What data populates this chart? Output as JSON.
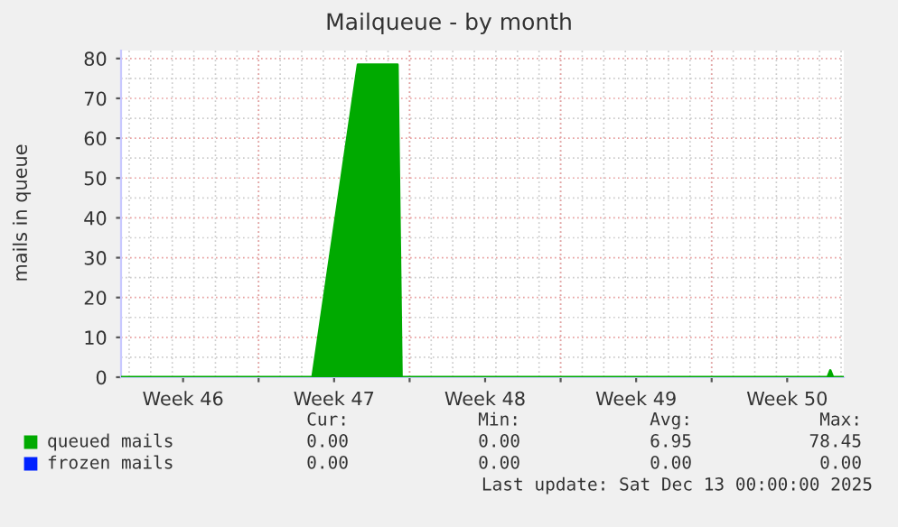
{
  "chart_data": {
    "type": "area",
    "title": "Mailqueue - by month",
    "ylabel": "mails in queue",
    "x": [
      "2025-11-10T15:00",
      "2025-11-19T12:00",
      "2025-11-21T14:30",
      "2025-11-23T10:30",
      "2025-11-23T15:00",
      "2025-12-13T09:00",
      "2025-12-13T12:00",
      "2025-12-13T15:00",
      "2025-12-14T03:00"
    ],
    "series": [
      {
        "name": "queued mails",
        "color": "#00aa00",
        "values": [
          0,
          0,
          78.45,
          78.45,
          0,
          0,
          1.7,
          0,
          0
        ]
      },
      {
        "name": "frozen mails",
        "color": "#0022ff",
        "values": [
          null,
          null,
          null,
          null,
          null,
          null,
          null,
          null,
          null
        ]
      }
    ],
    "xlim": [
      "2025-11-10T15:00",
      "2025-12-14T03:00"
    ],
    "xticks": [
      {
        "value": "2025-11-13T12:00",
        "label": "Week 46"
      },
      {
        "value": "2025-11-17T00:00",
        "label": null
      },
      {
        "value": "2025-11-20T12:00",
        "label": "Week 47"
      },
      {
        "value": "2025-11-24T00:00",
        "label": null
      },
      {
        "value": "2025-11-27T12:00",
        "label": "Week 48"
      },
      {
        "value": "2025-12-01T00:00",
        "label": null
      },
      {
        "value": "2025-12-04T12:00",
        "label": "Week 49"
      },
      {
        "value": "2025-12-08T00:00",
        "label": null
      },
      {
        "value": "2025-12-11T12:00",
        "label": "Week 50"
      }
    ],
    "ylim": [
      0,
      82
    ],
    "yticks": [
      0,
      10,
      20,
      30,
      40,
      50,
      60,
      70,
      80
    ],
    "grid": true,
    "legend": "bottom",
    "annotations": [
      "Cur:",
      "Min:",
      "Avg:",
      "Max:",
      "0.00",
      "0.00",
      "6.95",
      "78.45",
      "0.00",
      "0.00",
      "0.00",
      "0.00",
      "Last update: Sat Dec 13 00:00:00 2025"
    ]
  }
}
